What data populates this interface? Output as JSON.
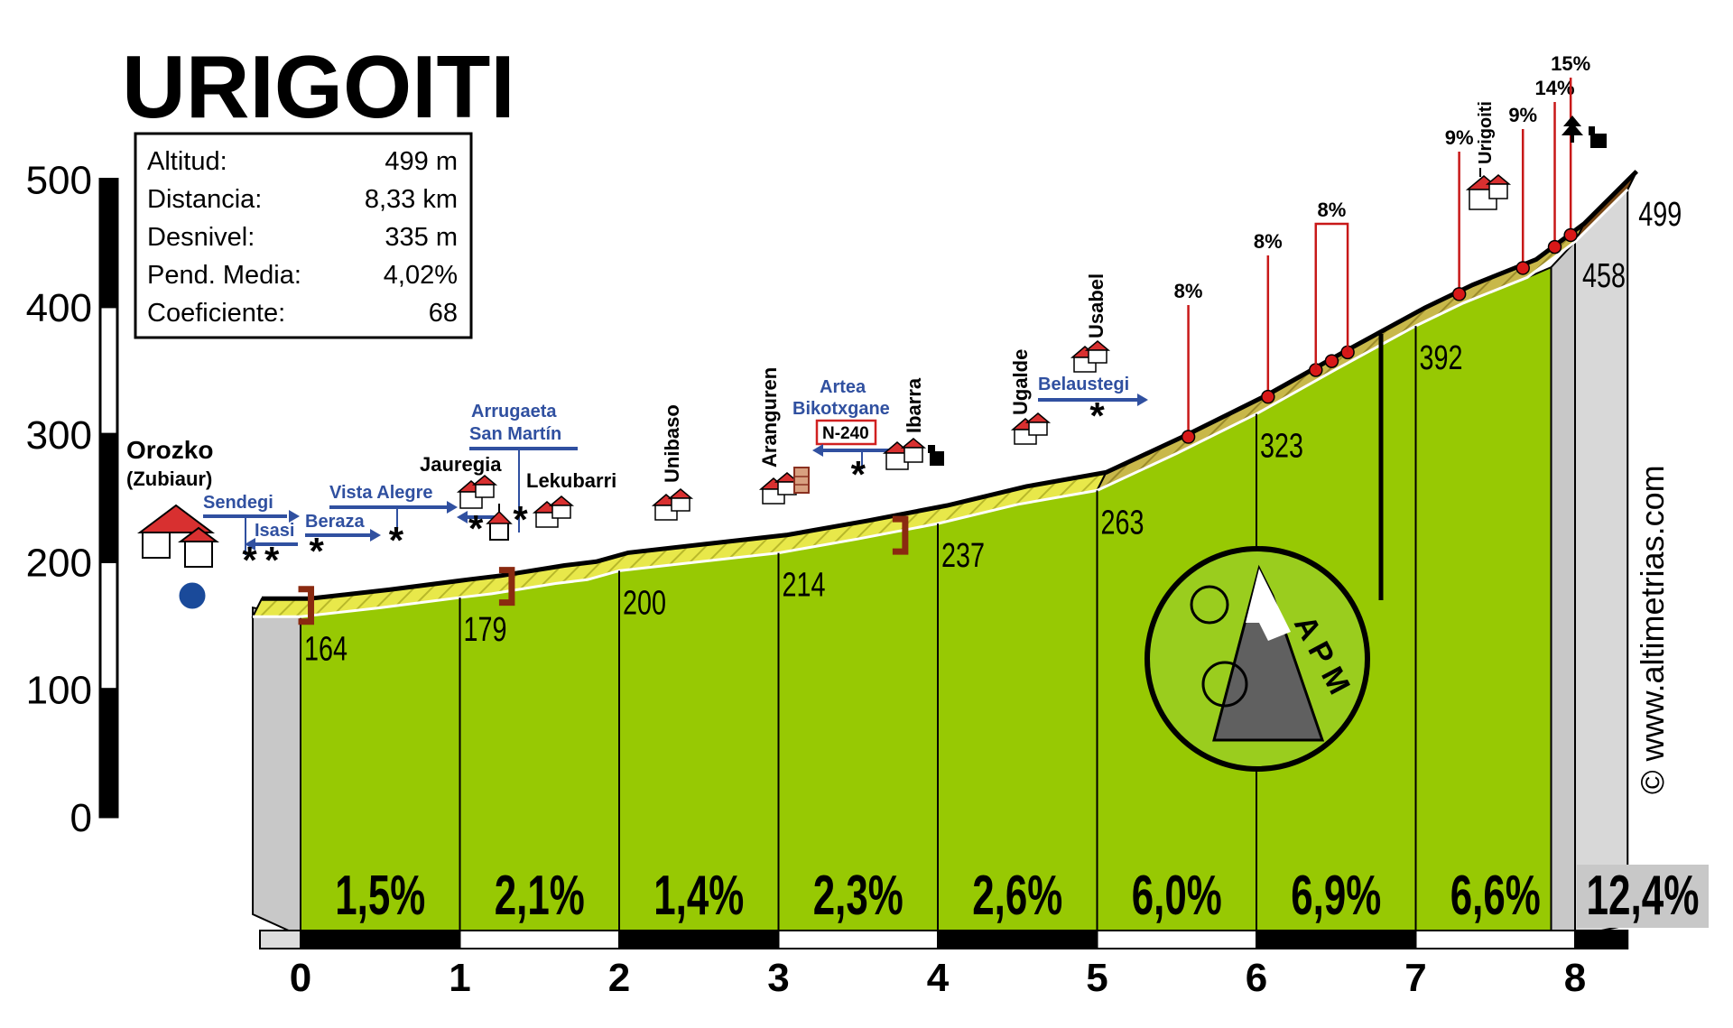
{
  "chart_data": {
    "type": "area",
    "title": "URIGOITI",
    "stats": [
      {
        "label": "Altitud:",
        "value": "499 m"
      },
      {
        "label": "Distancia:",
        "value": "8,33 km"
      },
      {
        "label": "Desnivel:",
        "value": "335 m"
      },
      {
        "label": "Pend. Media:",
        "value": "4,02%"
      },
      {
        "label": "Coeficiente:",
        "value": "68"
      }
    ],
    "ylim": [
      0,
      500
    ],
    "y_ticks": [
      0,
      100,
      200,
      300,
      400,
      500
    ],
    "x_ticks": [
      0,
      1,
      2,
      3,
      4,
      5,
      6,
      7,
      8
    ],
    "xlim": [
      0,
      8.33
    ],
    "profile_km": [
      -0.3,
      0,
      0.5,
      1,
      1.2,
      1.5,
      1.6,
      1.8,
      2,
      2.5,
      3,
      3.5,
      4,
      4.5,
      5,
      5.5,
      6,
      6.5,
      7,
      7.3,
      7.7,
      8,
      8.33
    ],
    "profile_alt": [
      164,
      164,
      171,
      179,
      182,
      188,
      190,
      193,
      200,
      207,
      214,
      225,
      237,
      252,
      263,
      292,
      323,
      358,
      392,
      410,
      430,
      458,
      499
    ],
    "km_altitudes": [
      {
        "km": 0,
        "alt": "164"
      },
      {
        "km": 1,
        "alt": "179"
      },
      {
        "km": 2,
        "alt": "200"
      },
      {
        "km": 3,
        "alt": "214"
      },
      {
        "km": 4,
        "alt": "237"
      },
      {
        "km": 5,
        "alt": "263"
      },
      {
        "km": 6,
        "alt": "323"
      },
      {
        "km": 7,
        "alt": "392"
      },
      {
        "km": 8,
        "alt": "458"
      },
      {
        "km": 8.33,
        "alt": "499"
      }
    ],
    "gradients": [
      "1,5%",
      "2,1%",
      "1,4%",
      "2,3%",
      "2,6%",
      "6,0%",
      "6,9%",
      "6,6%",
      "12,4%"
    ],
    "steep_points": [
      {
        "km": 5.55,
        "label": "8%"
      },
      {
        "km": 6.05,
        "label": "8%"
      },
      {
        "km": 6.35,
        "label": ""
      },
      {
        "km": 6.45,
        "label": ""
      },
      {
        "km": 6.55,
        "label": ""
      },
      {
        "km": 7.25,
        "label": "9%"
      },
      {
        "km": 7.65,
        "label": "9%"
      },
      {
        "km": 7.85,
        "label": "14%"
      },
      {
        "km": 7.95,
        "label": "15%"
      }
    ],
    "place_labels": {
      "orozko": "Orozko",
      "zubiaur": "(Zubiaur)",
      "sendegi": "Sendegi",
      "isasi": "Isasi",
      "beraza": "Beraza",
      "vista_alegre": "Vista Alegre",
      "jauregia": "Jauregia",
      "arrugaeta": "Arrugaeta",
      "san_martin": "San Martín",
      "lekubarri": "Lekubarri",
      "unibaso": "Unibaso",
      "aranguren": "Aranguren",
      "artea": "Artea",
      "bikotxgane": "Bikotxgane",
      "n240": "N-240",
      "ibarra": "Ibarra",
      "ugalde": "Ugalde",
      "usabel": "Usabel",
      "belaustegi": "Belaustegi",
      "urigoiti": "Urigoiti"
    },
    "logo_text": "A P M",
    "copyright": "© www.altimetrias.com"
  }
}
